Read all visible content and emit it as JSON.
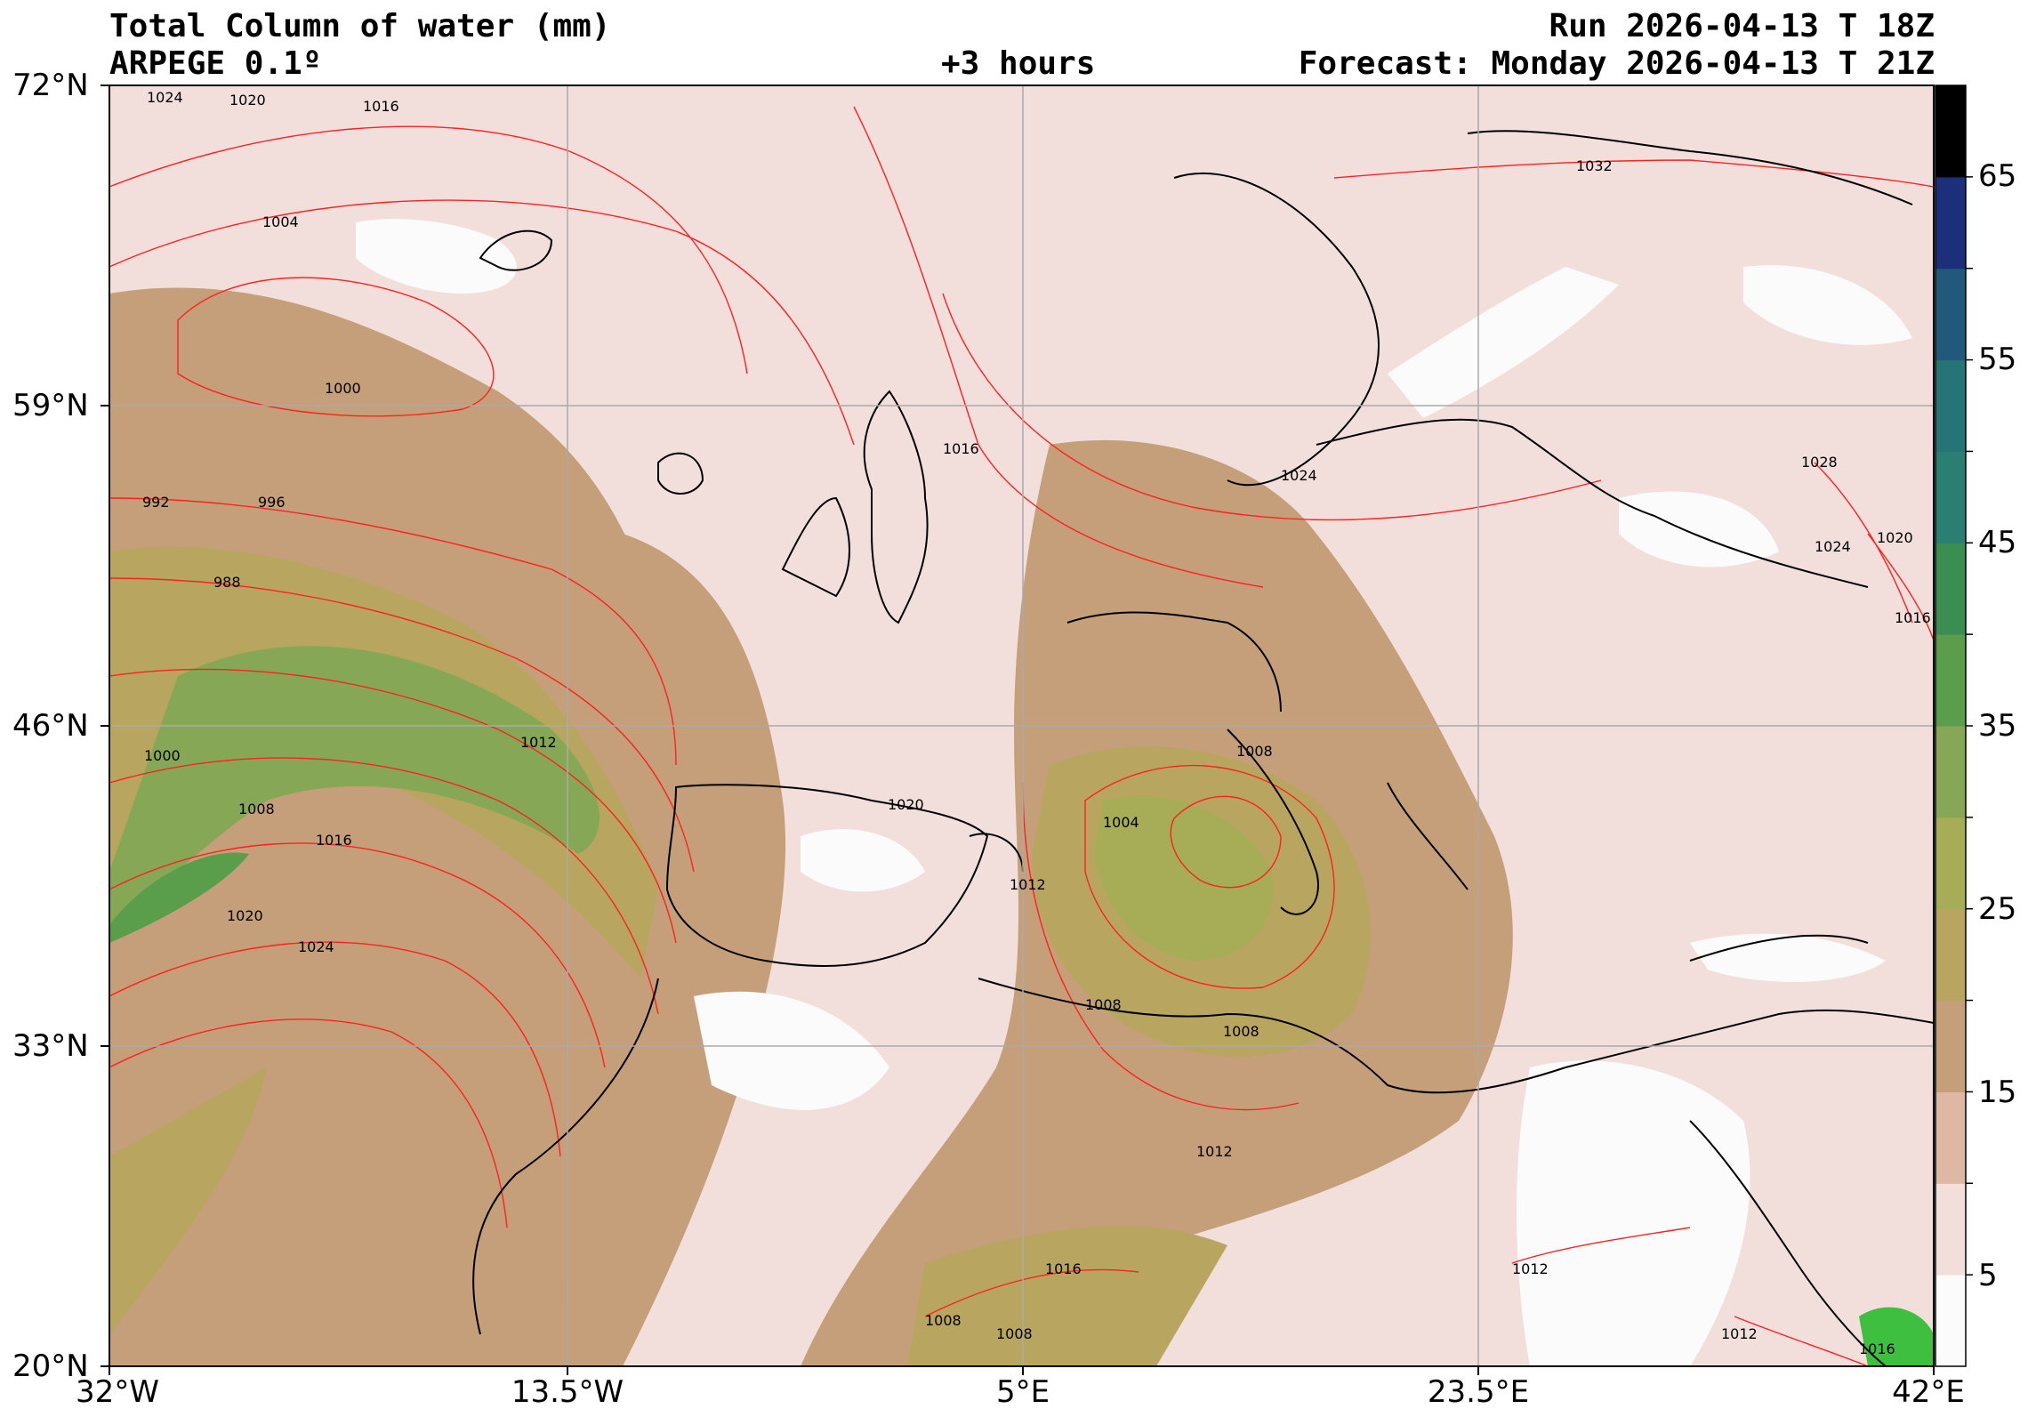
{
  "header": {
    "title_line1": "Total Column of water (mm)",
    "model": "ARPEGE 0.1º",
    "lead_time": "+3 hours",
    "run": "Run 2026-04-13 T 18Z",
    "forecast": "Forecast: Monday 2026-04-13 T 21Z"
  },
  "map": {
    "lat_range": [
      20,
      72
    ],
    "lon_range": [
      -32,
      42
    ],
    "lat_ticks": [
      "72°N",
      "59°N",
      "46°N",
      "33°N",
      "20°N"
    ],
    "lon_ticks": [
      "32°W",
      "13.5°W",
      "5°E",
      "23.5°E",
      "42°E"
    ],
    "isobar_color": "#ff2020",
    "isobar_labels": [
      "1024",
      "1020",
      "1016",
      "1004",
      "1000",
      "992",
      "996",
      "988",
      "1000",
      "1008",
      "1016",
      "1020",
      "1024",
      "1012",
      "1016",
      "1024",
      "1032",
      "1028",
      "1024",
      "1020",
      "1016",
      "1020",
      "1012",
      "1004",
      "1008",
      "1008",
      "1008",
      "1012",
      "1008",
      "1008",
      "1016",
      "1012",
      "1012",
      "1016"
    ]
  },
  "colorbar": {
    "ticks": [
      "65",
      "55",
      "45",
      "35",
      "25",
      "15",
      "5"
    ],
    "colors": [
      "#fcfbfb",
      "#f2dfdc",
      "#dfb8a4",
      "#c49f7a",
      "#b8a660",
      "#a6ad56",
      "#86a856",
      "#5a9e4c",
      "#3a8e52",
      "#2a7e72",
      "#257476",
      "#20597a",
      "#1b2f7a",
      "#000000"
    ]
  }
}
